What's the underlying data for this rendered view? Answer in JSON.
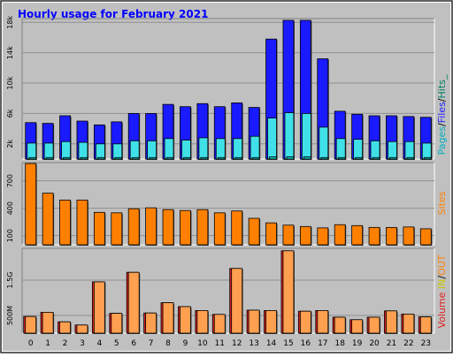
{
  "title": "Hourly usage for February 2021",
  "colors": {
    "background": "#c0c0c0",
    "title": "#0000ff",
    "hits_bar": "#1a1aff",
    "files_bar": "#40e0e8",
    "sites_bar": "#ff8000",
    "kbytes_out": "#ff9f50",
    "kbytes_in": "#e02020",
    "volume_label": "#e02020",
    "pages_label": "#00b0c0",
    "files_label": "#2020ff",
    "hits_label": "#008060",
    "sites_label": "#ff8000",
    "in_label": "#c8c800",
    "out_label": "#ff8000"
  },
  "chart_data": [
    {
      "type": "bar",
      "title": "",
      "legend_labels": [
        "Pages",
        "Files",
        "Hits"
      ],
      "legend_separator": "/",
      "legend_trailing": "_",
      "categories": [
        "0",
        "1",
        "2",
        "3",
        "4",
        "5",
        "6",
        "7",
        "8",
        "9",
        "10",
        "11",
        "12",
        "13",
        "14",
        "15",
        "16",
        "17",
        "18",
        "19",
        "20",
        "21",
        "22",
        "23"
      ],
      "y_ticks": [
        {
          "value": 2000,
          "label": "2k"
        },
        {
          "value": 6000,
          "label": "6k"
        },
        {
          "value": 10000,
          "label": "10k"
        },
        {
          "value": 14000,
          "label": "14k"
        },
        {
          "value": 18000,
          "label": "18k"
        }
      ],
      "ylim": [
        0,
        18500
      ],
      "grid": true,
      "series": [
        {
          "name": "Hits",
          "values": [
            4800,
            4700,
            5700,
            5000,
            4500,
            4900,
            6000,
            6000,
            7200,
            6900,
            7300,
            6900,
            7400,
            6800,
            15800,
            19800,
            20300,
            13200,
            6300,
            5900,
            5700,
            5700,
            5600,
            5500
          ]
        },
        {
          "name": "Files",
          "values": [
            2100,
            2100,
            2300,
            2200,
            2000,
            2000,
            2400,
            2400,
            2700,
            2500,
            2800,
            2700,
            2700,
            3000,
            5400,
            6100,
            6000,
            4200,
            2700,
            2600,
            2400,
            2300,
            2300,
            2100
          ]
        },
        {
          "name": "Pages",
          "values": [
            200,
            200,
            200,
            200,
            200,
            200,
            200,
            200,
            200,
            200,
            200,
            200,
            200,
            200,
            300,
            300,
            300,
            200,
            200,
            200,
            200,
            200,
            200,
            200
          ]
        }
      ]
    },
    {
      "type": "bar",
      "title": "",
      "legend_labels": [
        "Sites"
      ],
      "categories": [
        "0",
        "1",
        "2",
        "3",
        "4",
        "5",
        "6",
        "7",
        "8",
        "9",
        "10",
        "11",
        "12",
        "13",
        "14",
        "15",
        "16",
        "17",
        "18",
        "19",
        "20",
        "21",
        "22",
        "23"
      ],
      "y_ticks": [
        {
          "value": 100,
          "label": "100"
        },
        {
          "value": 400,
          "label": "400"
        },
        {
          "value": 700,
          "label": "700"
        }
      ],
      "ylim": [
        0,
        900
      ],
      "grid": true,
      "series": [
        {
          "name": "Sites",
          "values": [
            890,
            565,
            490,
            490,
            355,
            350,
            395,
            405,
            385,
            375,
            385,
            350,
            370,
            290,
            240,
            215,
            200,
            185,
            220,
            210,
            190,
            190,
            195,
            175
          ]
        }
      ]
    },
    {
      "type": "bar",
      "title": "",
      "legend_labels": [
        "Volume",
        "IN",
        "OUT"
      ],
      "legend_separator": "/",
      "categories": [
        "0",
        "1",
        "2",
        "3",
        "4",
        "5",
        "6",
        "7",
        "8",
        "9",
        "10",
        "11",
        "12",
        "13",
        "14",
        "15",
        "16",
        "17",
        "18",
        "19",
        "20",
        "21",
        "22",
        "23"
      ],
      "y_ticks": [
        {
          "value": 500,
          "label": "500M"
        },
        {
          "value": 1500,
          "label": "1.5G"
        }
      ],
      "ylim": [
        0,
        2400
      ],
      "grid": true,
      "series": [
        {
          "name": "OUT",
          "values": [
            470,
            590,
            320,
            230,
            1450,
            560,
            1720,
            570,
            860,
            750,
            640,
            530,
            1830,
            650,
            640,
            2330,
            620,
            640,
            450,
            380,
            450,
            630,
            540,
            460
          ]
        },
        {
          "name": "IN",
          "values": [
            470,
            590,
            320,
            230,
            1450,
            560,
            1720,
            570,
            860,
            750,
            640,
            530,
            1830,
            650,
            640,
            2330,
            620,
            640,
            450,
            380,
            450,
            630,
            540,
            460
          ]
        }
      ]
    }
  ]
}
